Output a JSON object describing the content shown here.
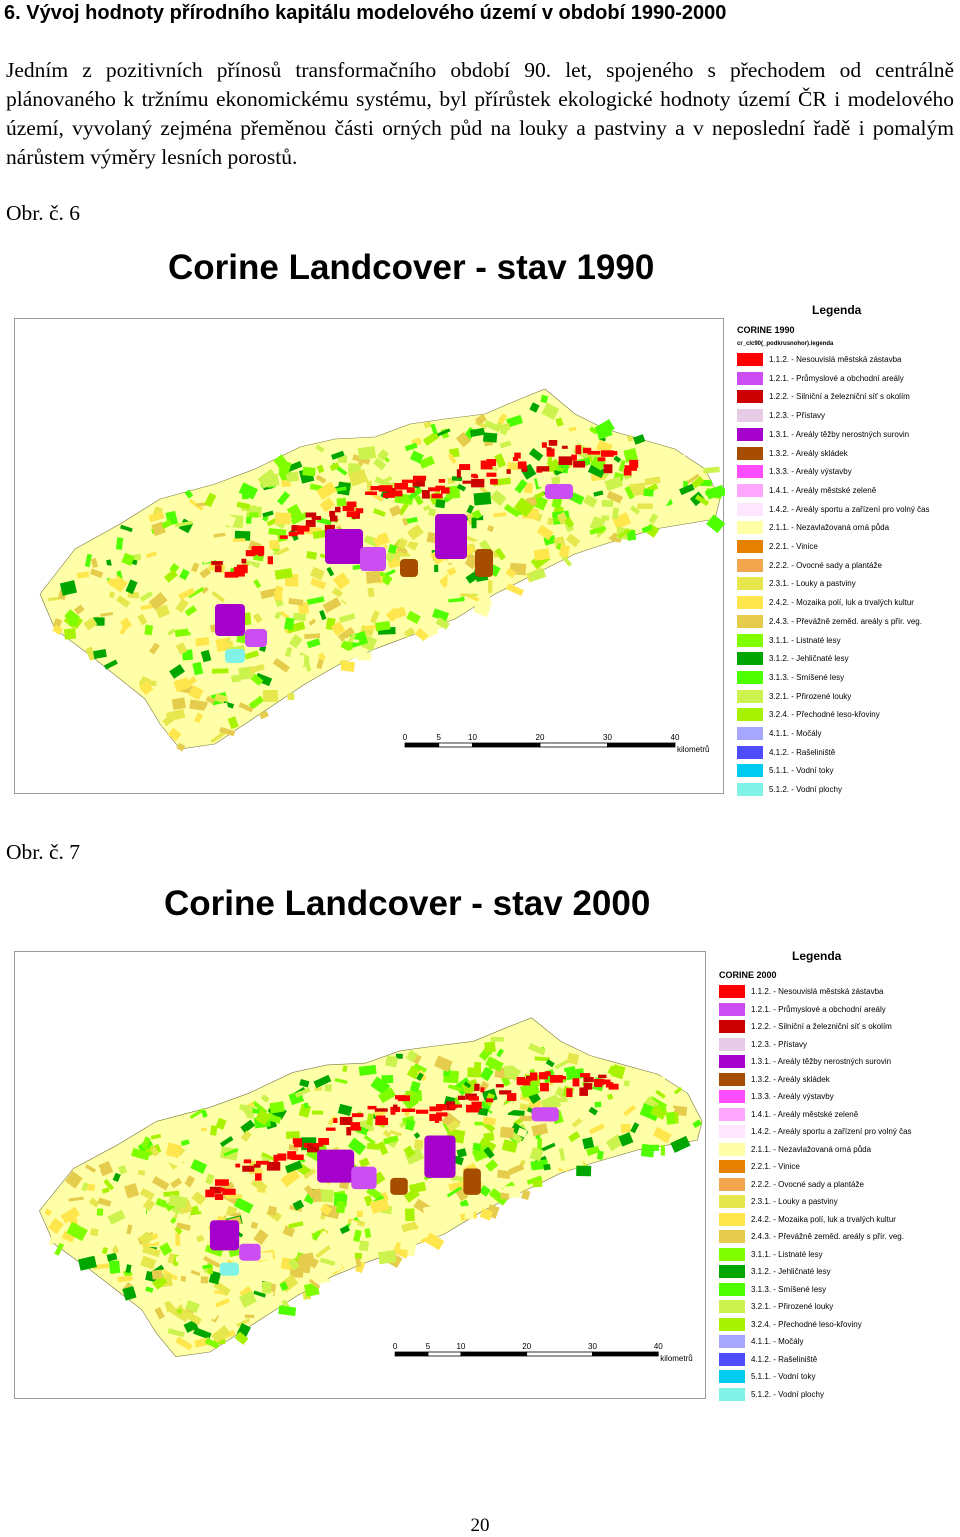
{
  "heading": "6. Vývoj hodnoty přírodního kapitálu modelového území v období 1990-2000",
  "paragraph": "Jedním z pozitivních přínosů transformačního období 90. let, spojeného s přechodem od centrálně plánovaného k tržnímu ekonomickému systému, byl přírůstek ekologické hodnoty území ČR i modelového území, vyvolaný zejména přeměnou části orných půd na louky a pastviny a v neposlední řadě i pomalým nárůstem výměry lesních porostů.",
  "figures": [
    {
      "caption": "Obr. č. 6",
      "title": "Corine Landcover - stav 1990",
      "legend_title": "Legenda",
      "legend_subtitle": "CORINE 1990",
      "legend_subtitle2": "cr_clc90(_podkrusnohor).legenda",
      "scale": {
        "ticks": [
          "0",
          "5",
          "10",
          "20",
          "30",
          "40"
        ],
        "unit": "kilometrů"
      }
    },
    {
      "caption": "Obr. č. 7",
      "title": "Corine Landcover - stav 2000",
      "legend_title": "Legenda",
      "legend_subtitle": "CORINE 2000",
      "legend_subtitle2": "",
      "scale": {
        "ticks": [
          "0",
          "5",
          "10",
          "20",
          "30",
          "40"
        ],
        "unit": "kilometrů"
      }
    }
  ],
  "legend_items": [
    {
      "label": "1.1.2. - Nesouvislá městská zástavba",
      "color": "#ff0000"
    },
    {
      "label": "1.2.1. - Průmyslové a obchodní areály",
      "color": "#cc4df2"
    },
    {
      "label": "1.2.2. - Silniční a železniční síť s okolím",
      "color": "#cc0000"
    },
    {
      "label": "1.2.3. - Přístavy",
      "color": "#e6cce6"
    },
    {
      "label": "1.3.1. - Areály těžby nerostných surovin",
      "color": "#a600cc"
    },
    {
      "label": "1.3.2. - Areály skládek",
      "color": "#a64d00"
    },
    {
      "label": "1.3.3. - Areály výstavby",
      "color": "#ff4dff"
    },
    {
      "label": "1.4.1. - Areály městské zeleně",
      "color": "#ffa6ff"
    },
    {
      "label": "1.4.2. - Areály sportu a zařízení pro volný čas",
      "color": "#ffe6ff"
    },
    {
      "label": "2.1.1. - Nezavlažovaná orná půda",
      "color": "#ffffa8"
    },
    {
      "label": "2.2.1. - Vinice",
      "color": "#e68000"
    },
    {
      "label": "2.2.2. - Ovocné sady a plantáže",
      "color": "#f2a64d"
    },
    {
      "label": "2.3.1. - Louky a pastviny",
      "color": "#e6e64d"
    },
    {
      "label": "2.4.2. - Mozaika polí, luk a trvalých kultur",
      "color": "#ffe64d"
    },
    {
      "label": "2.4.3. - Převážně zeměd. areály s přír. veg.",
      "color": "#e6cc4d"
    },
    {
      "label": "3.1.1. - Listnaté lesy",
      "color": "#80ff00"
    },
    {
      "label": "3.1.2. - Jehličnaté lesy",
      "color": "#00a600"
    },
    {
      "label": "3.1.3. - Smíšené lesy",
      "color": "#4dff00"
    },
    {
      "label": "3.2.1. - Přirozené louky",
      "color": "#ccf24d"
    },
    {
      "label": "3.2.4. - Přechodné leso-křoviny",
      "color": "#a6f200"
    },
    {
      "label": "4.1.1. - Močály",
      "color": "#a6a6ff"
    },
    {
      "label": "4.1.2. - Rašeliniště",
      "color": "#4d4dff"
    },
    {
      "label": "5.1.1. - Vodní toky",
      "color": "#00ccf2"
    },
    {
      "label": "5.1.2. - Vodní plochy",
      "color": "#80f2e6"
    }
  ],
  "page_number": "20"
}
